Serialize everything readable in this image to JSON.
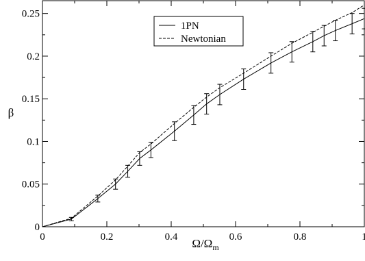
{
  "chart_data": {
    "type": "line",
    "xlabel": {
      "main": "Ω/Ω",
      "sub": "m"
    },
    "ylabel": "β",
    "xlim": [
      0,
      1
    ],
    "ylim": [
      0,
      0.265
    ],
    "x_ticks": [
      0,
      0.2,
      0.4,
      0.6,
      0.8,
      1
    ],
    "x_tick_labels": [
      "0",
      "0.2",
      "0.4",
      "0.6",
      "0.8",
      "1"
    ],
    "y_ticks": [
      0,
      0.05,
      0.1,
      0.15,
      0.2,
      0.25
    ],
    "y_tick_labels": [
      "0",
      "0.05",
      "0.1",
      "0.15",
      "0.2",
      "0.25"
    ],
    "grid": false,
    "legend_position": "top-center",
    "series": [
      {
        "name": "1PN",
        "style": "solid",
        "x": [
          0,
          0.09,
          0.172,
          0.227,
          0.265,
          0.302,
          0.337,
          0.41,
          0.47,
          0.51,
          0.551,
          0.625,
          0.71,
          0.775,
          0.84,
          0.875,
          0.91,
          0.962,
          1.0
        ],
        "y": [
          0,
          0.009,
          0.033,
          0.05,
          0.065,
          0.08,
          0.09,
          0.112,
          0.131,
          0.144,
          0.155,
          0.173,
          0.192,
          0.205,
          0.217,
          0.224,
          0.23,
          0.238,
          0.244
        ]
      },
      {
        "name": "Newtonian",
        "style": "dashed",
        "x": [
          0,
          0.09,
          0.172,
          0.227,
          0.265,
          0.302,
          0.337,
          0.41,
          0.47,
          0.51,
          0.551,
          0.625,
          0.71,
          0.775,
          0.84,
          0.875,
          0.91,
          0.962,
          1.0
        ],
        "y": [
          0,
          0.01,
          0.036,
          0.055,
          0.071,
          0.087,
          0.097,
          0.121,
          0.14,
          0.152,
          0.163,
          0.18,
          0.2,
          0.215,
          0.228,
          0.235,
          0.242,
          0.251,
          0.26
        ]
      }
    ],
    "error_bars": {
      "x": [
        0.09,
        0.172,
        0.227,
        0.265,
        0.302,
        0.337,
        0.41,
        0.47,
        0.51,
        0.551,
        0.625,
        0.71,
        0.775,
        0.84,
        0.875,
        0.91,
        0.962,
        1.0
      ],
      "y": [
        0.009,
        0.033,
        0.05,
        0.065,
        0.08,
        0.09,
        0.112,
        0.131,
        0.144,
        0.155,
        0.173,
        0.192,
        0.205,
        0.217,
        0.224,
        0.23,
        0.238,
        0.244
      ],
      "err": [
        0.002,
        0.004,
        0.006,
        0.007,
        0.008,
        0.009,
        0.011,
        0.011,
        0.012,
        0.012,
        0.012,
        0.012,
        0.012,
        0.012,
        0.012,
        0.012,
        0.012,
        0.012
      ]
    }
  }
}
